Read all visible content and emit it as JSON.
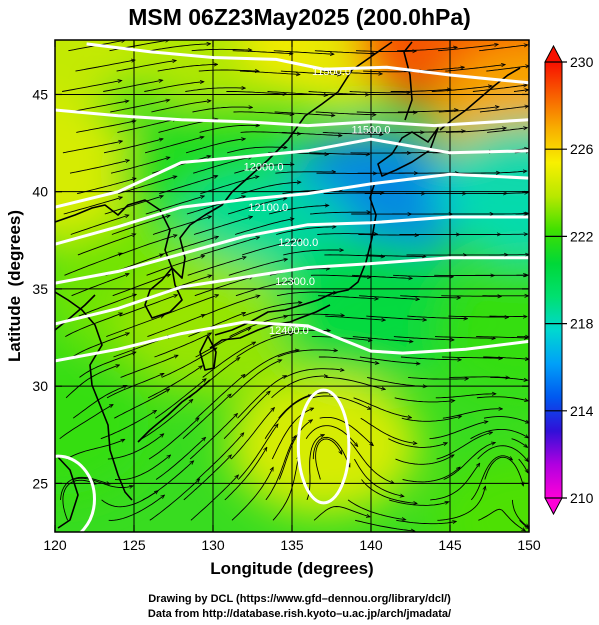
{
  "title": "MSM 06Z23May2025 (200.0hPa)",
  "chart_data": {
    "type": "contour-map",
    "xlabel": "Longitude (degrees)",
    "ylabel": "Latitude  (degrees)",
    "x_ticks": [
      "120",
      "125",
      "130",
      "135",
      "140",
      "145",
      "150"
    ],
    "y_ticks": [
      "25",
      "30",
      "35",
      "40",
      "45"
    ],
    "xlim": [
      120,
      150
    ],
    "ylim": [
      22.5,
      47.8
    ],
    "grid": true,
    "colorbar": {
      "labels": [
        "210",
        "214",
        "218",
        "222",
        "226",
        "230"
      ],
      "range": [
        210,
        230
      ],
      "colors": [
        "#ff00d8",
        "#b000e0",
        "#3010d8",
        "#0058f0",
        "#00a0f8",
        "#00d8d0",
        "#00e070",
        "#00d838",
        "#40e000",
        "#b8e800",
        "#f8f000",
        "#f8b000",
        "#f86000",
        "#f81000"
      ]
    },
    "contour_labels": [
      "11500.0",
      "11500.0",
      "12000.0",
      "12100.0",
      "12200.0",
      "12300.0",
      "12400.0"
    ],
    "color_field": [
      {
        "lon": 120,
        "lat": 47.8,
        "value": 224.5
      },
      {
        "lon": 130,
        "lat": 47.8,
        "value": 224.0
      },
      {
        "lon": 138,
        "lat": 47.8,
        "value": 225.5
      },
      {
        "lon": 145,
        "lat": 47.8,
        "value": 229.0
      },
      {
        "lon": 150,
        "lat": 47.8,
        "value": 228.5
      },
      {
        "lon": 150,
        "lat": 44.0,
        "value": 227.0
      },
      {
        "lon": 120,
        "lat": 41.0,
        "value": 225.0
      },
      {
        "lon": 130,
        "lat": 41.0,
        "value": 221.5
      },
      {
        "lon": 140,
        "lat": 39.5,
        "value": 215.5
      },
      {
        "lon": 150,
        "lat": 40.0,
        "value": 218.0
      },
      {
        "lon": 133,
        "lat": 37.5,
        "value": 218.5
      },
      {
        "lon": 125,
        "lat": 35.0,
        "value": 223.0
      },
      {
        "lon": 130,
        "lat": 33.0,
        "value": 223.5
      },
      {
        "lon": 140,
        "lat": 34.0,
        "value": 220.5
      },
      {
        "lon": 150,
        "lat": 33.0,
        "value": 222.0
      },
      {
        "lon": 120,
        "lat": 28.0,
        "value": 222.0
      },
      {
        "lon": 137,
        "lat": 27.0,
        "value": 225.0
      },
      {
        "lon": 150,
        "lat": 23.0,
        "value": 222.5
      }
    ],
    "contours": [
      [
        [
          122,
          47.6
        ],
        [
          126,
          47.2
        ],
        [
          130,
          46.9
        ],
        [
          134,
          46.8
        ],
        [
          137,
          46.3
        ],
        [
          141,
          46.4
        ],
        [
          145,
          46.0
        ],
        [
          150,
          45.6
        ]
      ],
      [
        [
          120,
          44.2
        ],
        [
          124,
          43.9
        ],
        [
          128,
          43.7
        ],
        [
          132,
          43.6
        ],
        [
          136,
          43.4
        ],
        [
          140,
          43.6
        ],
        [
          144,
          43.4
        ],
        [
          150,
          43.7
        ]
      ],
      [
        [
          120,
          39.2
        ],
        [
          124,
          40.0
        ],
        [
          128,
          41.5
        ],
        [
          132,
          41.8
        ],
        [
          136,
          42.1
        ],
        [
          140,
          42.7
        ],
        [
          145,
          42.0
        ],
        [
          150,
          42.1
        ]
      ],
      [
        [
          120,
          37.3
        ],
        [
          124,
          38.2
        ],
        [
          128,
          39.2
        ],
        [
          132,
          39.6
        ],
        [
          136,
          39.9
        ],
        [
          140,
          40.4
        ],
        [
          145,
          40.9
        ],
        [
          150,
          40.7
        ]
      ],
      [
        [
          120,
          35.3
        ],
        [
          124,
          35.9
        ],
        [
          128,
          36.8
        ],
        [
          132,
          37.7
        ],
        [
          136,
          38.3
        ],
        [
          140,
          38.4
        ],
        [
          145,
          38.7
        ],
        [
          150,
          38.7
        ]
      ],
      [
        [
          120,
          33.2
        ],
        [
          124,
          34.0
        ],
        [
          128,
          35.1
        ],
        [
          132,
          35.6
        ],
        [
          136,
          36.1
        ],
        [
          140,
          36.3
        ],
        [
          145,
          36.6
        ],
        [
          150,
          36.6
        ]
      ],
      [
        [
          120,
          31.3
        ],
        [
          124,
          31.9
        ],
        [
          128,
          32.7
        ],
        [
          132,
          33.3
        ],
        [
          136,
          33.1
        ],
        [
          140,
          31.8
        ],
        [
          142,
          31.7
        ],
        [
          146,
          31.9
        ],
        [
          150,
          32.3
        ]
      ]
    ],
    "closed_contours": [
      {
        "center": [
          137.0,
          26.9
        ],
        "rx": 1.6,
        "ry": 2.9
      },
      {
        "center": [
          120.2,
          24.2
        ],
        "rx": 2.3,
        "ry": 2.2
      }
    ],
    "wind_field": [
      {
        "lon": 120,
        "lat": 45,
        "u": 1.0,
        "v": 0.15
      },
      {
        "lon": 135,
        "lat": 45,
        "u": 1.0,
        "v": -0.05
      },
      {
        "lon": 150,
        "lat": 45,
        "u": 1.0,
        "v": 0.1
      },
      {
        "lon": 130,
        "lat": 39,
        "u": 1.0,
        "v": 0.25
      },
      {
        "lon": 145,
        "lat": 39,
        "u": 1.0,
        "v": 0.0
      },
      {
        "lon": 125,
        "lat": 33,
        "u": 1.0,
        "v": 0.3
      },
      {
        "lon": 140,
        "lat": 33,
        "u": 1.0,
        "v": -0.05
      },
      {
        "lon": 120,
        "lat": 27,
        "u": 0.7,
        "v": 0.7
      },
      {
        "lon": 130,
        "lat": 27,
        "u": 0.8,
        "v": 0.6
      },
      {
        "lon": 145,
        "lat": 25,
        "u": 1.0,
        "v": -0.1
      }
    ],
    "vortex_centers": [
      {
        "lon": 137.0,
        "lat": 27.0,
        "sense": "anticyclonic"
      },
      {
        "lon": 148.3,
        "lat": 26.0,
        "sense": "anticyclonic"
      },
      {
        "lon": 121.0,
        "lat": 24.5,
        "sense": "anticyclonic"
      }
    ]
  },
  "credits": {
    "line1": "Drawing by DCL (https://www.gfd–dennou.org/library/dcl/)",
    "line2": "Data from http://database.rish.kyoto–u.ac.jp/arch/jmadata/"
  }
}
